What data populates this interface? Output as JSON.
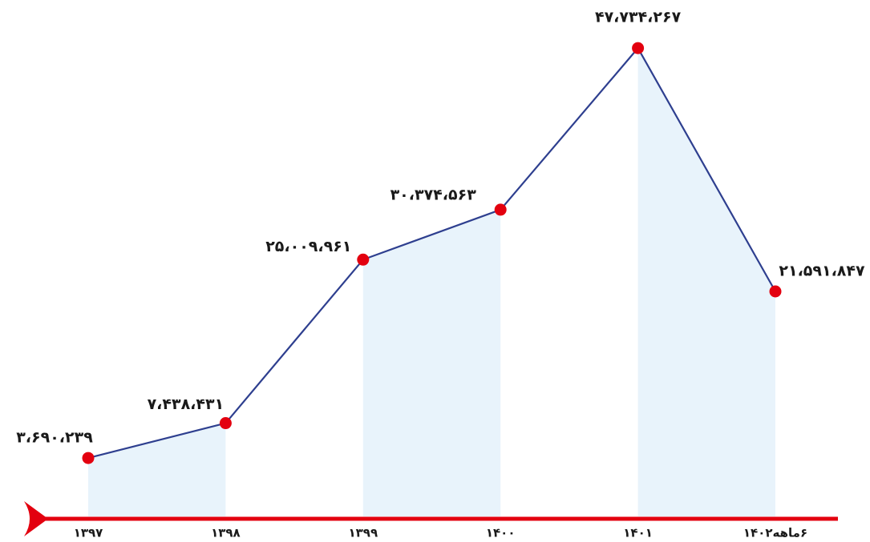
{
  "chart_data": {
    "type": "line",
    "categories": [
      "۱۳۹۷",
      "۱۳۹۸",
      "۱۳۹۹",
      "۱۴۰۰",
      "۱۴۰۱",
      "۶ماهه۱۴۰۲"
    ],
    "values": [
      3690239,
      7438431,
      25009961,
      30374563,
      47734267,
      21591847
    ],
    "value_labels": [
      "۳،۶۹۰،۲۳۹",
      "۷،۴۳۸،۴۳۱",
      "۲۵،۰۰۹،۹۶۱",
      "۳۰،۳۷۴،۵۶۳",
      "۴۷،۷۳۴،۲۶۷",
      "۲۱،۵۹۱،۸۴۷"
    ],
    "color": "#2e3f8f",
    "marker_color": "#e3000f",
    "fill_color": "#e8f3fb",
    "axis_color": "#e3000f"
  }
}
